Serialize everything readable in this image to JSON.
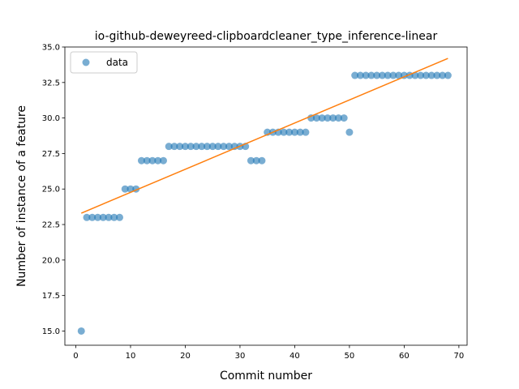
{
  "chart_data": {
    "type": "scatter",
    "title": "io-github-deweyreed-clipboardcleaner_type_inference-linear",
    "xlabel": "Commit number",
    "ylabel": "Number of instance of a feature",
    "xlim": [
      -2,
      71.5
    ],
    "ylim": [
      14.0,
      35.0
    ],
    "xticks": [
      0,
      10,
      20,
      30,
      40,
      50,
      60,
      70
    ],
    "xtick_labels": [
      "0",
      "10",
      "20",
      "30",
      "40",
      "50",
      "60",
      "70"
    ],
    "yticks": [
      15.0,
      17.5,
      20.0,
      22.5,
      25.0,
      27.5,
      30.0,
      32.5,
      35.0
    ],
    "ytick_labels": [
      "15.0",
      "17.5",
      "20.0",
      "22.5",
      "25.0",
      "27.5",
      "30.0",
      "32.5",
      "35.0"
    ],
    "grid": false,
    "legend_position": "top-left",
    "series": [
      {
        "name": "data",
        "kind": "scatter",
        "color": "#1f77b4",
        "x": [
          1,
          2,
          3,
          4,
          5,
          6,
          7,
          8,
          9,
          10,
          11,
          12,
          13,
          14,
          15,
          16,
          17,
          18,
          19,
          20,
          21,
          22,
          23,
          24,
          25,
          26,
          27,
          28,
          29,
          30,
          31,
          32,
          33,
          34,
          35,
          36,
          37,
          38,
          39,
          40,
          41,
          42,
          43,
          44,
          45,
          46,
          47,
          48,
          49,
          50,
          51,
          52,
          53,
          54,
          55,
          56,
          57,
          58,
          59,
          60,
          61,
          62,
          63,
          64,
          65,
          66,
          67,
          68
        ],
        "y": [
          15,
          23,
          23,
          23,
          23,
          23,
          23,
          23,
          25,
          25,
          25,
          27,
          27,
          27,
          27,
          27,
          28,
          28,
          28,
          28,
          28,
          28,
          28,
          28,
          28,
          28,
          28,
          28,
          28,
          28,
          28,
          27,
          27,
          27,
          29,
          29,
          29,
          29,
          29,
          29,
          29,
          29,
          30,
          30,
          30,
          30,
          30,
          30,
          30,
          29,
          33,
          33,
          33,
          33,
          33,
          33,
          33,
          33,
          33,
          33,
          33,
          33,
          33,
          33,
          33,
          33,
          33,
          33
        ]
      },
      {
        "kind": "line",
        "color": "#ff7f0e",
        "x": [
          1,
          68
        ],
        "y": [
          23.3,
          34.2
        ]
      }
    ]
  }
}
